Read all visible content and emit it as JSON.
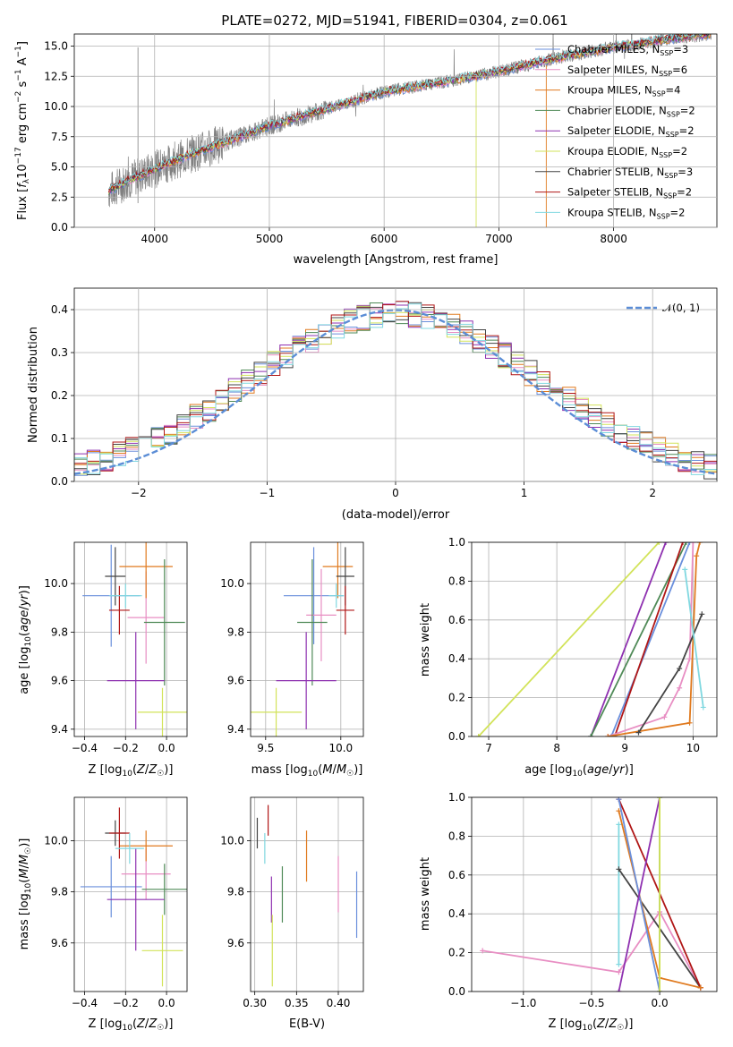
{
  "title": "PLATE=0272, MJD=51941, FIBERID=0304, z=0.061",
  "colors": {
    "chabrier_miles": "#6a8fdc",
    "salpeter_miles": "#e88ec3",
    "kroupa_miles": "#e07a1f",
    "chabrier_elodie": "#4f8a57",
    "salpeter_elodie": "#8e30b0",
    "kroupa_elodie": "#d2e35a",
    "chabrier_stelib": "#444444",
    "salpeter_stelib": "#b01616",
    "kroupa_stelib": "#80d8e0",
    "data": "#808080",
    "normal": "#5b8dd6"
  },
  "legend": [
    {
      "key": "chabrier_miles",
      "label": "Chabrier MILES, N",
      "sub": "SSP",
      "tail": "=3"
    },
    {
      "key": "salpeter_miles",
      "label": "Salpeter MILES, N",
      "sub": "SSP",
      "tail": "=6"
    },
    {
      "key": "kroupa_miles",
      "label": "Kroupa MILES, N",
      "sub": "SSP",
      "tail": "=4"
    },
    {
      "key": "chabrier_elodie",
      "label": "Chabrier ELODIE, N",
      "sub": "SSP",
      "tail": "=2"
    },
    {
      "key": "salpeter_elodie",
      "label": "Salpeter ELODIE, N",
      "sub": "SSP",
      "tail": "=2"
    },
    {
      "key": "kroupa_elodie",
      "label": "Kroupa ELODIE, N",
      "sub": "SSP",
      "tail": "=2"
    },
    {
      "key": "chabrier_stelib",
      "label": "Chabrier STELIB, N",
      "sub": "SSP",
      "tail": "=3"
    },
    {
      "key": "salpeter_stelib",
      "label": "Salpeter STELIB, N",
      "sub": "SSP",
      "tail": "=2"
    },
    {
      "key": "kroupa_stelib",
      "label": "Kroupa STELIB, N",
      "sub": "SSP",
      "tail": "=2"
    }
  ],
  "chart_data": [
    {
      "type": "line",
      "panel": "spectrum",
      "xlabel": "wavelength [Angstrom, rest frame]",
      "ylabel": "Flux [f_λ 10^-17 erg cm^-2 s^-1 A^-1]",
      "xlim": [
        3300,
        8900
      ],
      "ylim": [
        0,
        16
      ],
      "xticks": [
        4000,
        5000,
        6000,
        7000,
        8000
      ],
      "yticks": [
        "0.0",
        "2.5",
        "5.0",
        "7.5",
        "10.0",
        "12.5",
        "15.0"
      ],
      "continuum": {
        "x": [
          3600,
          3800,
          4000,
          4300,
          4600,
          5000,
          5500,
          6000,
          6500,
          7000,
          7500,
          8000,
          8500,
          8850
        ],
        "y": [
          3.0,
          4.0,
          4.8,
          6.0,
          7.0,
          8.4,
          9.8,
          11.2,
          12.0,
          12.9,
          14.0,
          14.9,
          15.6,
          16.0
        ]
      }
    },
    {
      "type": "line",
      "panel": "residual-histogram",
      "xlabel": "(data-model)/error",
      "ylabel": "Normed distribution",
      "xlim": [
        -2.5,
        2.5
      ],
      "ylim": [
        0,
        0.45
      ],
      "xticks": [
        "−2",
        "−1",
        "0",
        "1",
        "2"
      ],
      "yticks": [
        "0.0",
        "0.1",
        "0.2",
        "0.3",
        "0.4"
      ],
      "normal_label": "𝒩(0, 1)",
      "bin_width": 0.1
    },
    {
      "type": "scatter",
      "panel": "age-vs-Z",
      "xlabel": "Z [log₁₀(Z/Z☉)]",
      "ylabel": "age  [log₁₀(age/yr)]",
      "xlim": [
        -0.45,
        0.1
      ],
      "ylim": [
        9.37,
        10.17
      ],
      "xticks": [
        "−0.4",
        "−0.2",
        "0.0"
      ],
      "yticks": [
        "9.4",
        "9.6",
        "9.8",
        "10.0"
      ],
      "points": [
        {
          "key": "chabrier_miles",
          "x": -0.27,
          "xerr": 0.14,
          "y": 9.95,
          "yerr": 0.21
        },
        {
          "key": "salpeter_miles",
          "x": -0.1,
          "xerr": 0.09,
          "y": 9.86,
          "yerr": 0.19
        },
        {
          "key": "kroupa_miles",
          "x": -0.1,
          "xerr": 0.13,
          "y": 10.07,
          "yerr": 0.13
        },
        {
          "key": "chabrier_elodie",
          "x": -0.01,
          "xerr": 0.1,
          "y": 9.84,
          "yerr": 0.26
        },
        {
          "key": "salpeter_elodie",
          "x": -0.15,
          "xerr": 0.14,
          "y": 9.6,
          "yerr": 0.2
        },
        {
          "key": "kroupa_elodie",
          "x": -0.02,
          "xerr": 0.12,
          "y": 9.47,
          "yerr": 0.1
        },
        {
          "key": "chabrier_stelib",
          "x": -0.25,
          "xerr": 0.05,
          "y": 10.03,
          "yerr": 0.12
        },
        {
          "key": "salpeter_stelib",
          "x": -0.23,
          "xerr": 0.05,
          "y": 9.89,
          "yerr": 0.1
        },
        {
          "key": "kroupa_stelib",
          "x": -0.2,
          "xerr": 0.08,
          "y": 9.95,
          "yerr": 0.05
        }
      ]
    },
    {
      "type": "scatter",
      "panel": "age-vs-mass",
      "xlabel": "mass [log₁₀(M/M☉)]",
      "ylabel": "",
      "xlim": [
        9.4,
        10.15
      ],
      "ylim": [
        9.37,
        10.17
      ],
      "xticks": [
        "9.5",
        "10.0"
      ],
      "yticks": [
        "9.4",
        "9.6",
        "9.8",
        "10.0"
      ],
      "points": [
        {
          "key": "chabrier_miles",
          "x": 9.82,
          "xerr": 0.2,
          "y": 9.95,
          "yerr": 0.2
        },
        {
          "key": "salpeter_miles",
          "x": 9.87,
          "xerr": 0.1,
          "y": 9.87,
          "yerr": 0.19
        },
        {
          "key": "kroupa_miles",
          "x": 9.98,
          "xerr": 0.1,
          "y": 10.07,
          "yerr": 0.13
        },
        {
          "key": "chabrier_elodie",
          "x": 9.81,
          "xerr": 0.1,
          "y": 9.84,
          "yerr": 0.26
        },
        {
          "key": "salpeter_elodie",
          "x": 9.77,
          "xerr": 0.2,
          "y": 9.6,
          "yerr": 0.2
        },
        {
          "key": "kroupa_elodie",
          "x": 9.57,
          "xerr": 0.17,
          "y": 9.47,
          "yerr": 0.1
        },
        {
          "key": "chabrier_stelib",
          "x": 10.03,
          "xerr": 0.06,
          "y": 10.03,
          "yerr": 0.12
        },
        {
          "key": "salpeter_stelib",
          "x": 10.03,
          "xerr": 0.06,
          "y": 9.89,
          "yerr": 0.1
        },
        {
          "key": "kroupa_stelib",
          "x": 9.97,
          "xerr": 0.05,
          "y": 9.95,
          "yerr": 0.05
        }
      ]
    },
    {
      "type": "line",
      "panel": "mass-weight-vs-age",
      "xlabel": "age  [log₁₀(age/yr)]",
      "ylabel": "mass weight",
      "xlim": [
        6.75,
        10.35
      ],
      "ylim": [
        0,
        1
      ],
      "xticks": [
        "7",
        "8",
        "9",
        "10"
      ],
      "yticks": [
        "0.0",
        "0.2",
        "0.4",
        "0.6",
        "0.8",
        "1.0"
      ],
      "series": [
        {
          "key": "kroupa_elodie",
          "x": [
            6.85,
            9.5
          ],
          "y": [
            0,
            1
          ]
        },
        {
          "key": "salpeter_elodie",
          "x": [
            8.5,
            9.6
          ],
          "y": [
            0,
            1
          ]
        },
        {
          "key": "chabrier_elodie",
          "x": [
            8.5,
            9.9
          ],
          "y": [
            0,
            1
          ]
        },
        {
          "key": "chabrier_miles",
          "x": [
            8.8,
            9.95
          ],
          "y": [
            0,
            1
          ]
        },
        {
          "key": "salpeter_stelib",
          "x": [
            8.85,
            9.85
          ],
          "y": [
            0,
            1
          ]
        },
        {
          "key": "salpeter_miles",
          "x": [
            8.75,
            9.58,
            9.8,
            9.95,
            10.0
          ],
          "y": [
            0,
            0.1,
            0.25,
            0.4,
            1
          ]
        },
        {
          "key": "kroupa_miles",
          "x": [
            8.75,
            9.95,
            10.05,
            10.1
          ],
          "y": [
            0,
            0.07,
            0.93,
            1
          ]
        },
        {
          "key": "chabrier_stelib",
          "x": [
            9.2,
            9.8,
            10.13
          ],
          "y": [
            0.02,
            0.35,
            0.63
          ]
        },
        {
          "key": "kroupa_stelib",
          "x": [
            9.88,
            10.15
          ],
          "y": [
            0.86,
            0.15
          ]
        }
      ]
    },
    {
      "type": "scatter",
      "panel": "mass-vs-Z",
      "xlabel": "Z [log₁₀(Z/Z☉)]",
      "ylabel": "mass [log₁₀(M/M☉)]",
      "xlim": [
        -0.45,
        0.1
      ],
      "ylim": [
        9.41,
        10.17
      ],
      "xticks": [
        "−0.4",
        "−0.2",
        "0.0"
      ],
      "yticks": [
        "9.6",
        "9.8",
        "10.0"
      ],
      "points": [
        {
          "key": "chabrier_miles",
          "x": -0.27,
          "xerr": 0.15,
          "y": 9.82,
          "yerr": 0.12
        },
        {
          "key": "salpeter_miles",
          "x": -0.1,
          "xerr": 0.12,
          "y": 9.87,
          "yerr": 0.1
        },
        {
          "key": "kroupa_miles",
          "x": -0.1,
          "xerr": 0.13,
          "y": 9.98,
          "yerr": 0.06
        },
        {
          "key": "chabrier_elodie",
          "x": -0.01,
          "xerr": 0.11,
          "y": 9.81,
          "yerr": 0.1
        },
        {
          "key": "salpeter_elodie",
          "x": -0.15,
          "xerr": 0.14,
          "y": 9.77,
          "yerr": 0.2
        },
        {
          "key": "kroupa_elodie",
          "x": -0.02,
          "xerr": 0.1,
          "y": 9.57,
          "yerr": 0.14
        },
        {
          "key": "chabrier_stelib",
          "x": -0.25,
          "xerr": 0.05,
          "y": 10.03,
          "yerr": 0.05
        },
        {
          "key": "salpeter_stelib",
          "x": -0.23,
          "xerr": 0.05,
          "y": 10.03,
          "yerr": 0.1
        },
        {
          "key": "kroupa_stelib",
          "x": -0.18,
          "xerr": 0.07,
          "y": 9.97,
          "yerr": 0.06
        }
      ]
    },
    {
      "type": "scatter",
      "panel": "mass-vs-ebv",
      "xlabel": "E(B-V)",
      "ylabel": "",
      "xlim": [
        0.295,
        0.43
      ],
      "ylim": [
        9.41,
        10.17
      ],
      "xticks": [
        "0.30",
        "0.35",
        "0.40"
      ],
      "yticks": [
        "9.6",
        "9.8",
        "10.0"
      ],
      "points": [
        {
          "key": "chabrier_stelib",
          "x": 0.303,
          "y": 10.03,
          "yerr": 0.06
        },
        {
          "key": "salpeter_stelib",
          "x": 0.316,
          "y": 10.08,
          "yerr": 0.06
        },
        {
          "key": "kroupa_stelib",
          "x": 0.312,
          "y": 9.97,
          "yerr": 0.06
        },
        {
          "key": "salpeter_elodie",
          "x": 0.32,
          "y": 9.77,
          "yerr": 0.09
        },
        {
          "key": "kroupa_elodie",
          "x": 0.321,
          "y": 9.57,
          "yerr": 0.14
        },
        {
          "key": "chabrier_elodie",
          "x": 0.333,
          "y": 9.79,
          "yerr": 0.11
        },
        {
          "key": "kroupa_miles",
          "x": 0.362,
          "y": 9.94,
          "yerr": 0.1
        },
        {
          "key": "salpeter_miles",
          "x": 0.4,
          "y": 9.83,
          "yerr": 0.11
        },
        {
          "key": "chabrier_miles",
          "x": 0.422,
          "y": 9.75,
          "yerr": 0.13
        }
      ]
    },
    {
      "type": "line",
      "panel": "mass-weight-vs-Z",
      "xlabel": "Z [log₁₀(Z/Z☉)]",
      "ylabel": "mass weight",
      "xlim": [
        -1.38,
        0.42
      ],
      "ylim": [
        0,
        1
      ],
      "xticks": [
        "−1.0",
        "−0.5",
        "0.0"
      ],
      "yticks": [
        "0.0",
        "0.2",
        "0.4",
        "0.6",
        "0.8",
        "1.0"
      ],
      "series": [
        {
          "key": "salpeter_miles",
          "x": [
            -1.3,
            -0.3,
            0.0,
            0.3
          ],
          "y": [
            0.21,
            0.1,
            0.41,
            0.02
          ]
        },
        {
          "key": "kroupa_stelib",
          "x": [
            -0.3,
            -0.3
          ],
          "y": [
            0.86,
            0.14
          ]
        },
        {
          "key": "chabrier_stelib",
          "x": [
            -0.3,
            0.3
          ],
          "y": [
            0.63,
            0.02
          ]
        },
        {
          "key": "salpeter_stelib",
          "x": [
            -0.3,
            0.3
          ],
          "y": [
            0.99,
            0.02
          ]
        },
        {
          "key": "kroupa_miles",
          "x": [
            -0.3,
            0.0,
            0.3
          ],
          "y": [
            0.93,
            0.07,
            0.02
          ]
        },
        {
          "key": "chabrier_miles",
          "x": [
            -0.3,
            0.0
          ],
          "y": [
            0.99,
            0.0
          ]
        },
        {
          "key": "salpeter_elodie",
          "x": [
            -0.3,
            0.0
          ],
          "y": [
            0.0,
            1.0
          ]
        },
        {
          "key": "chabrier_elodie",
          "x": [
            0.0,
            0.0
          ],
          "y": [
            0.0,
            1.0
          ]
        },
        {
          "key": "kroupa_elodie",
          "x": [
            0.0,
            0.0
          ],
          "y": [
            0.0,
            1.0
          ]
        }
      ]
    }
  ]
}
